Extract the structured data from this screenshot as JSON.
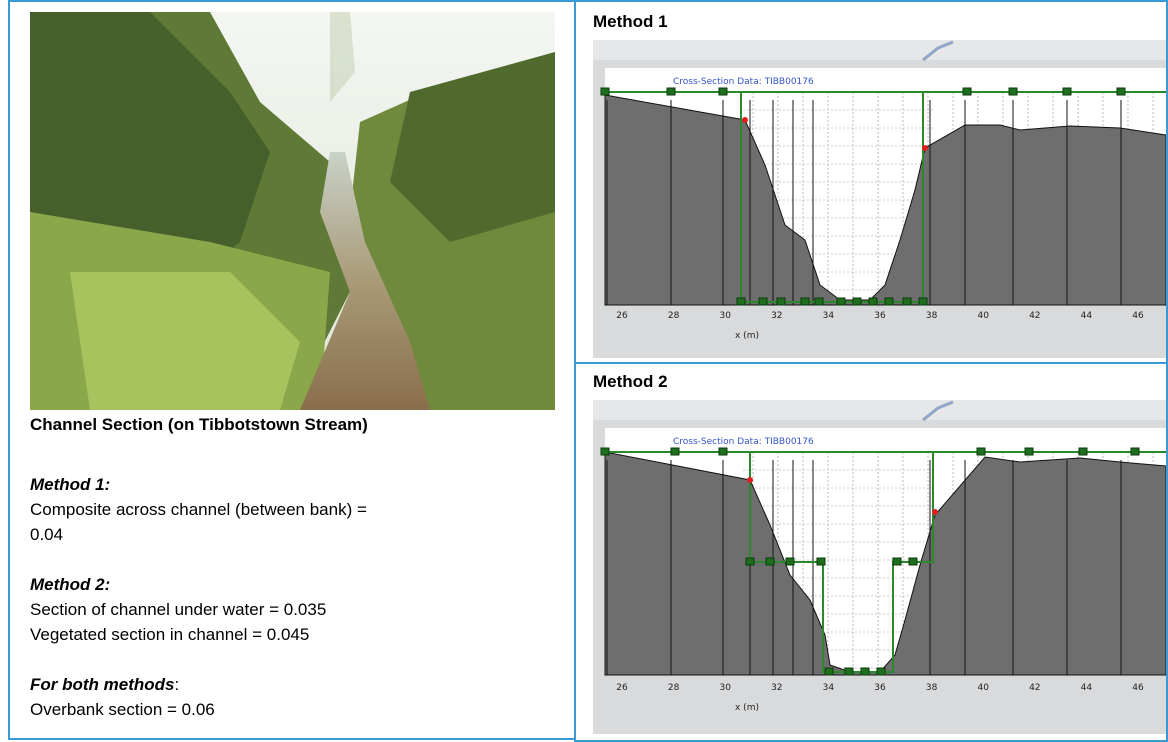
{
  "photo_caption": "Channel Section (on Tibbotstown Stream)",
  "method1": {
    "heading": "Method 1:",
    "lines": [
      "Composite across channel (between bank) =",
      "0.04"
    ]
  },
  "method2": {
    "heading": "Method 2:",
    "lines": [
      "Section of channel under water = 0.035",
      "Vegetated section in channel = 0.045"
    ]
  },
  "both": {
    "heading": "For both methods",
    "separator": ":",
    "lines": [
      "Overbank section = 0.06"
    ]
  },
  "panels": [
    {
      "title": "Method 1",
      "chart_title": "Cross-Section Data: TIBB00176",
      "x_ticks": [
        26,
        28,
        30,
        32,
        34,
        36,
        38,
        40,
        42,
        44,
        46
      ],
      "x_label": "x (m)"
    },
    {
      "title": "Method 2",
      "chart_title": "Cross-Section Data: TIBB00176",
      "x_ticks": [
        26,
        28,
        30,
        32,
        34,
        36,
        38,
        40,
        42,
        44,
        46
      ],
      "x_label": "x (m)"
    }
  ]
}
